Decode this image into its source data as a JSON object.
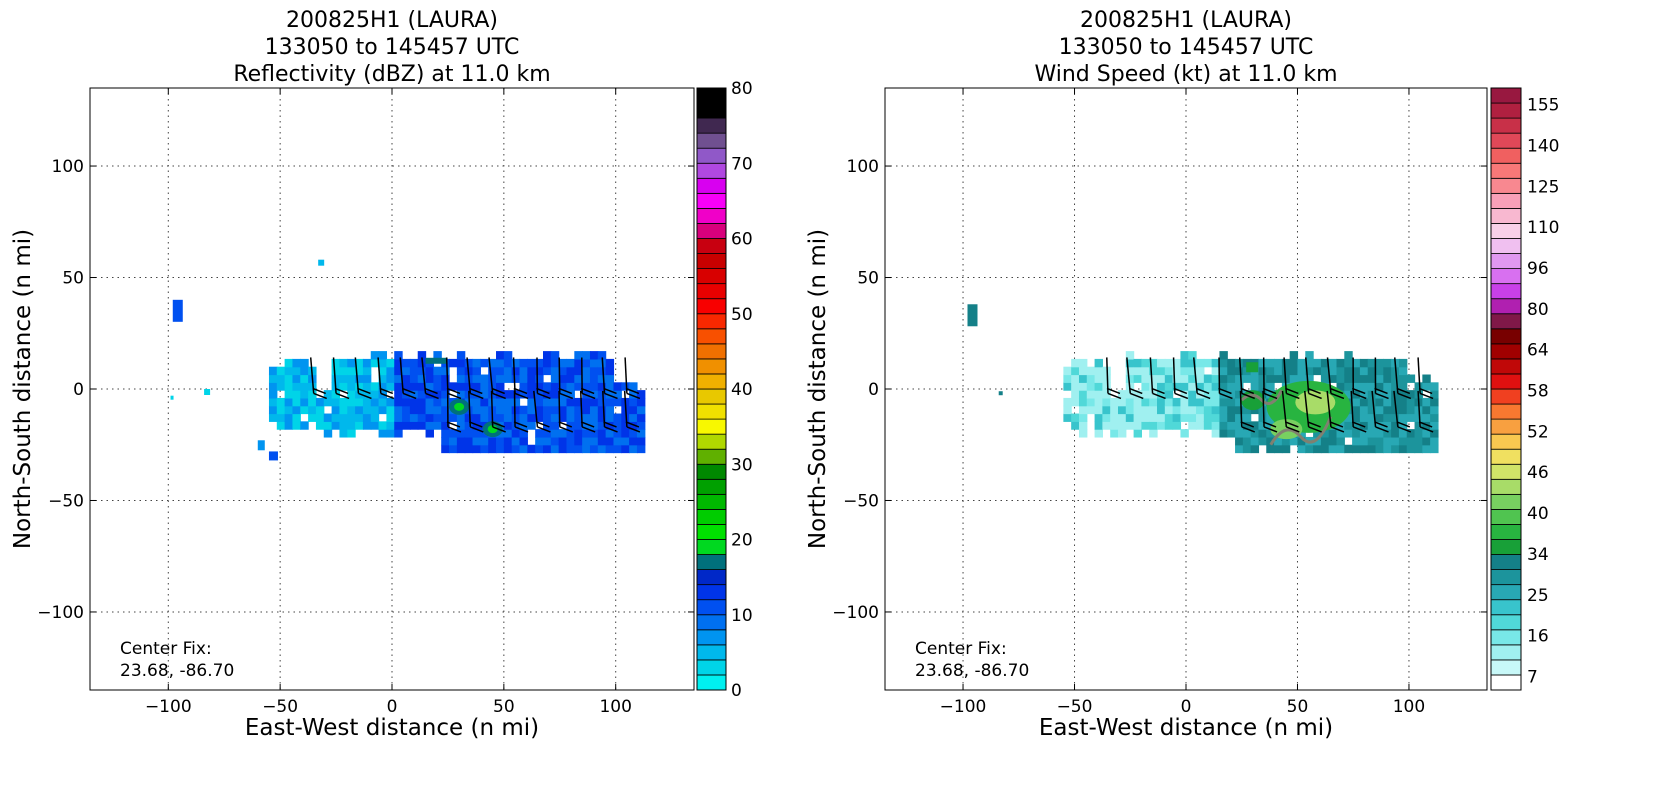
{
  "figure": {
    "panels": [
      {
        "title_lines": [
          "200825H1 (LAURA)",
          "133050 to 145457 UTC",
          "Reflectivity (dBZ) at 11.0 km"
        ],
        "xlabel": "East-West distance (n mi)",
        "ylabel": "North-South distance (n mi)",
        "center_fix_label": "Center Fix:",
        "center_fix_value": "23.68, -86.70"
      },
      {
        "title_lines": [
          "200825H1 (LAURA)",
          "133050 to 145457 UTC",
          "Wind Speed (kt) at 11.0 km"
        ],
        "xlabel": "East-West distance (n mi)",
        "ylabel": "North-South distance (n mi)",
        "center_fix_label": "Center Fix:",
        "center_fix_value": "23.68, -86.70"
      }
    ]
  },
  "chart_data": [
    {
      "type": "heatmap",
      "title": "200825H1 (LAURA) 133050 to 145457 UTC Reflectivity (dBZ) at 11.0 km",
      "xlabel": "East-West distance (n mi)",
      "ylabel": "North-South distance (n mi)",
      "xlim": [
        -135,
        135
      ],
      "ylim": [
        -135,
        135
      ],
      "xticks": [
        -100,
        -50,
        0,
        50,
        100
      ],
      "yticks": [
        -100,
        -50,
        0,
        50,
        100
      ],
      "xtick_labels": [
        "−100",
        "−50",
        "0",
        "50",
        "100"
      ],
      "ytick_labels": [
        "−100",
        "−50",
        "0",
        "50",
        "100"
      ],
      "grid": true,
      "colorbar": {
        "min": 0,
        "max": 80,
        "ticks": [
          0,
          10,
          20,
          30,
          40,
          50,
          60,
          70,
          80
        ],
        "tick_labels": [
          "0",
          "10",
          "20",
          "30",
          "40",
          "50",
          "60",
          "70",
          "80"
        ],
        "colors": [
          "#00f0f0",
          "#00d4e8",
          "#00b8ec",
          "#0094f0",
          "#0070f0",
          "#0050f0",
          "#0034e8",
          "#0028c8",
          "#00707c",
          "#00d820",
          "#00e000",
          "#00cc00",
          "#00b800",
          "#00a000",
          "#008800",
          "#60b000",
          "#b0d800",
          "#f8f800",
          "#f0e000",
          "#e8c800",
          "#f0b000",
          "#f09000",
          "#f07000",
          "#f85000",
          "#f82800",
          "#f80000",
          "#e80000",
          "#d80000",
          "#c80000",
          "#c80010",
          "#d8007c",
          "#f000c8",
          "#f800f8",
          "#d800f0",
          "#b048e0",
          "#9058c8",
          "#705090",
          "#402850",
          "#000000",
          "#000000"
        ]
      },
      "regions": [
        {
          "name": "main echo band",
          "x_range": [
            -55,
            113
          ],
          "y_range": [
            -32,
            14
          ],
          "dominant_dbz": "5-15"
        },
        {
          "name": "isolated echo",
          "x": -96,
          "y": 35
        },
        {
          "name": "green cell",
          "x": 30,
          "y": -8
        },
        {
          "name": "green cell",
          "x": 45,
          "y": -18
        }
      ],
      "annotation": "Center Fix: 23.68, -86.70"
    },
    {
      "type": "heatmap",
      "title": "200825H1 (LAURA) 133050 to 145457 UTC Wind Speed (kt) at 11.0 km",
      "xlabel": "East-West distance (n mi)",
      "ylabel": "North-South distance (n mi)",
      "xlim": [
        -135,
        135
      ],
      "ylim": [
        -135,
        135
      ],
      "xticks": [
        -100,
        -50,
        0,
        50,
        100
      ],
      "yticks": [
        -100,
        -50,
        0,
        50,
        100
      ],
      "xtick_labels": [
        "−100",
        "−50",
        "0",
        "50",
        "100"
      ],
      "ytick_labels": [
        "−100",
        "−50",
        "0",
        "50",
        "100"
      ],
      "grid": true,
      "colorbar": {
        "tick_values": [
          7,
          16,
          25,
          34,
          40,
          46,
          52,
          58,
          64,
          80,
          96,
          110,
          125,
          140,
          155
        ],
        "tick_labels": [
          "7",
          "16",
          "25",
          "34",
          "40",
          "46",
          "52",
          "58",
          "64",
          "80",
          "96",
          "110",
          "125",
          "140",
          "155"
        ],
        "colors": [
          "#ffffff",
          "#c8f8f8",
          "#a0f0f0",
          "#78e8e8",
          "#50d8d8",
          "#38c4cc",
          "#28a8b4",
          "#1c949c",
          "#148088",
          "#18a038",
          "#28b440",
          "#50c450",
          "#78d060",
          "#a8dc68",
          "#d0e468",
          "#f0e060",
          "#f8c850",
          "#f8a040",
          "#f87830",
          "#f04020",
          "#e01010",
          "#c00808",
          "#a00000",
          "#780000",
          "#801848",
          "#b020b0",
          "#c840e8",
          "#d870f0",
          "#e098f0",
          "#f0c0f0",
          "#f8d0e8",
          "#f8b8d0",
          "#f8a0b8",
          "#f88890",
          "#f87878",
          "#f06060",
          "#e04858",
          "#c83048",
          "#b02040",
          "#981840"
        ]
      },
      "regions": [
        {
          "name": "wind field",
          "x_range": [
            -55,
            113
          ],
          "y_range": [
            -32,
            14
          ],
          "dominant_kt": "16-30"
        },
        {
          "name": "isolated",
          "x": -96,
          "y": 33
        },
        {
          "name": "max wind area",
          "x": 55,
          "y": -8,
          "approx_kt": "34-46"
        }
      ],
      "annotation": "Center Fix: 23.68, -86.70"
    }
  ]
}
